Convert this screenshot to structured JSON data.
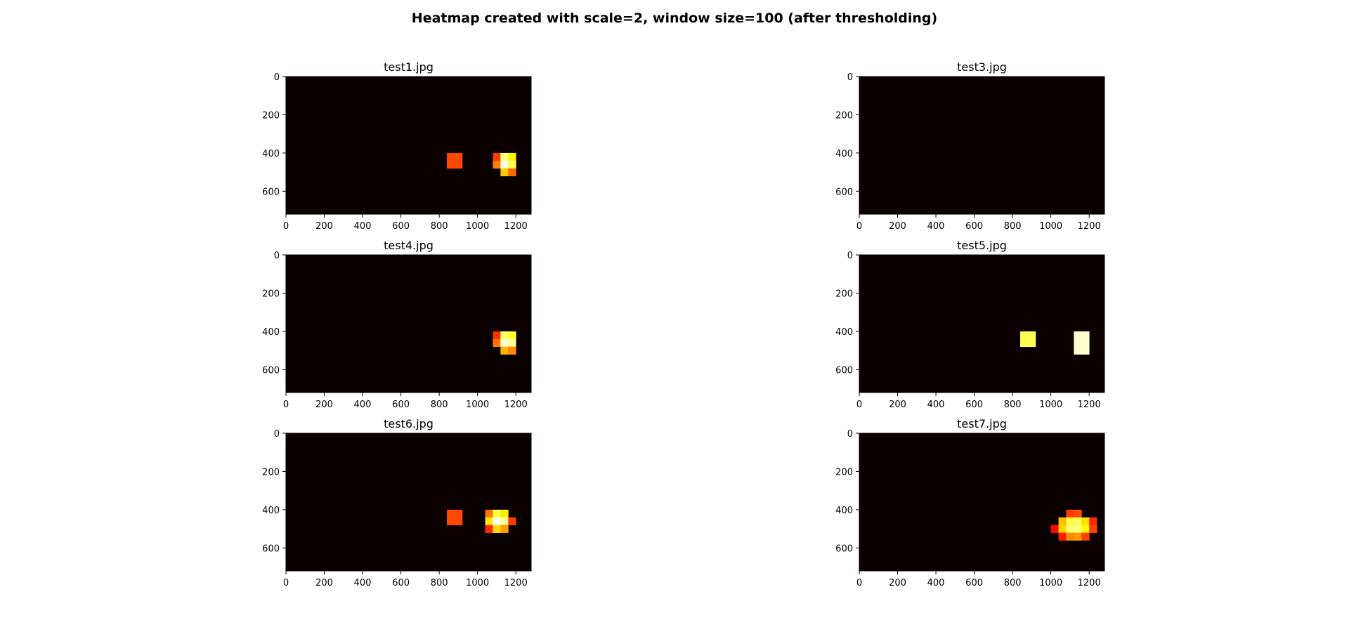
{
  "figure": {
    "suptitle": "Heatmap created with scale=2, window size=100 (after thresholding)",
    "colors": {
      "background": "#ffffff",
      "heat_bg": "#0b0000",
      "axis": "#000000"
    },
    "colormap": "hot"
  },
  "chart_data": [
    {
      "type": "heatmap",
      "title": "test1.jpg",
      "xlabel": "",
      "ylabel": "",
      "xlim": [
        0,
        1280
      ],
      "ylim": [
        720,
        0
      ],
      "xticks": [
        0,
        200,
        400,
        600,
        800,
        1000,
        1200
      ],
      "yticks": [
        0,
        200,
        400,
        600
      ],
      "blobs": [
        {
          "shape": "rect",
          "x0": 830,
          "x1": 930,
          "y0": 400,
          "y1": 470,
          "level": 0.45
        },
        {
          "shape": "ellipse",
          "cx": 1150,
          "cy": 450,
          "rx": 60,
          "ry": 70,
          "peak": 1.0
        }
      ]
    },
    {
      "type": "heatmap",
      "title": "test3.jpg",
      "xlabel": "",
      "ylabel": "",
      "xlim": [
        0,
        1280
      ],
      "ylim": [
        720,
        0
      ],
      "xticks": [
        0,
        200,
        400,
        600,
        800,
        1000,
        1200
      ],
      "yticks": [
        0,
        200,
        400,
        600
      ],
      "blobs": []
    },
    {
      "type": "heatmap",
      "title": "test4.jpg",
      "xlabel": "",
      "ylabel": "",
      "xlim": [
        0,
        1280
      ],
      "ylim": [
        720,
        0
      ],
      "xticks": [
        0,
        200,
        400,
        600,
        800,
        1000,
        1200
      ],
      "yticks": [
        0,
        200,
        400,
        600
      ],
      "blobs": [
        {
          "shape": "ellipse",
          "cx": 1155,
          "cy": 450,
          "rx": 65,
          "ry": 68,
          "peak": 1.0
        }
      ]
    },
    {
      "type": "heatmap",
      "title": "test5.jpg",
      "xlabel": "",
      "ylabel": "",
      "xlim": [
        0,
        1280
      ],
      "ylim": [
        720,
        0
      ],
      "xticks": [
        0,
        200,
        400,
        600,
        800,
        1000,
        1200
      ],
      "yticks": [
        0,
        200,
        400,
        600
      ],
      "blobs": [
        {
          "shape": "rect",
          "x0": 850,
          "x1": 930,
          "y0": 400,
          "y1": 490,
          "level": 0.82
        },
        {
          "shape": "rect",
          "x0": 1125,
          "x1": 1210,
          "y0": 400,
          "y1": 510,
          "level": 0.95
        }
      ]
    },
    {
      "type": "heatmap",
      "title": "test6.jpg",
      "xlabel": "",
      "ylabel": "",
      "xlim": [
        0,
        1280
      ],
      "ylim": [
        720,
        0
      ],
      "xticks": [
        0,
        200,
        400,
        600,
        800,
        1000,
        1200
      ],
      "yticks": [
        0,
        200,
        400,
        600
      ],
      "blobs": [
        {
          "shape": "rect",
          "x0": 850,
          "x1": 930,
          "y0": 400,
          "y1": 490,
          "level": 0.45
        },
        {
          "shape": "ellipse",
          "cx": 1110,
          "cy": 455,
          "rx": 75,
          "ry": 65,
          "peak": 1.0
        }
      ]
    },
    {
      "type": "heatmap",
      "title": "test7.jpg",
      "xlabel": "",
      "ylabel": "",
      "xlim": [
        0,
        1280
      ],
      "ylim": [
        720,
        0
      ],
      "xticks": [
        0,
        200,
        400,
        600,
        800,
        1000,
        1200
      ],
      "yticks": [
        0,
        200,
        400,
        600
      ],
      "blobs": [
        {
          "shape": "ellipse",
          "cx": 1125,
          "cy": 485,
          "rx": 110,
          "ry": 75,
          "peak": 0.9
        }
      ]
    }
  ]
}
